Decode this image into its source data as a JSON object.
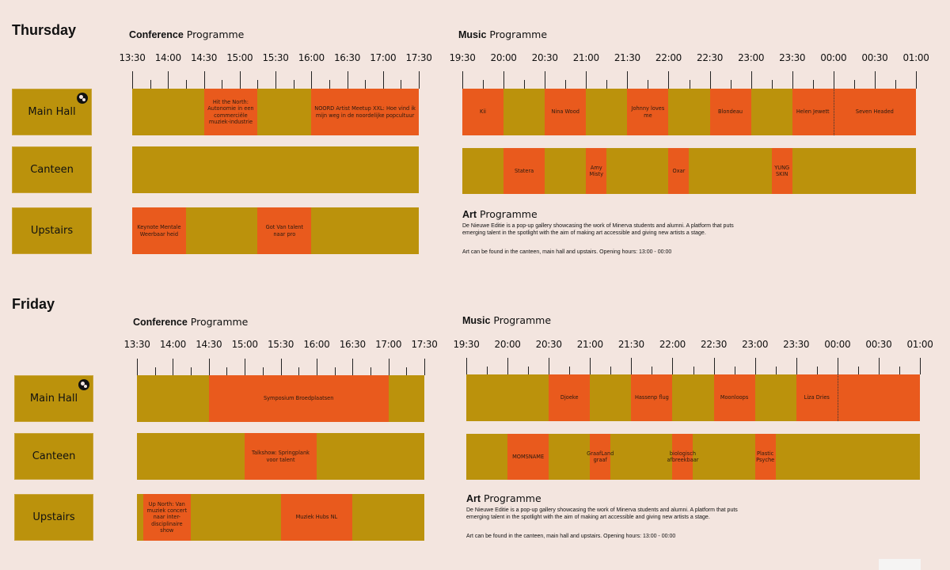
{
  "days": [
    {
      "name": "Thursday",
      "conference": {
        "title_bold": "Conference",
        "title_rest": "Programme",
        "time_labels": [
          "13:30",
          "14:00",
          "14:30",
          "15:00",
          "15:30",
          "16:00",
          "16:30",
          "17:00",
          "17:30"
        ],
        "venues": [
          {
            "name": "Main Hall",
            "has_icon": true,
            "events": [
              {
                "label": "Hit the North: Autonomie in een commerciële muziek-industrie",
                "start": "14:30",
                "end": "15:15"
              },
              {
                "label": "NOORD Artist Meetup XXL: Hoe vind ik mijn weg in de noordelijke popcultuur",
                "start": "16:00",
                "end": "17:30"
              }
            ]
          },
          {
            "name": "Canteen",
            "has_icon": false,
            "events": []
          },
          {
            "name": "Upstairs",
            "has_icon": false,
            "events": [
              {
                "label": "Keynote Mentale Weerbaar heid",
                "start": "13:30",
                "end": "14:15"
              },
              {
                "label": "Got Van talent naar pro",
                "start": "15:15",
                "end": "16:00"
              }
            ]
          }
        ]
      },
      "music": {
        "title_bold": "Music",
        "title_rest": "Programme",
        "time_labels": [
          "19:30",
          "20:00",
          "20:30",
          "21:00",
          "21:30",
          "22:00",
          "22:30",
          "23:00",
          "23:30",
          "00:00",
          "00:30",
          "01:00"
        ],
        "venues": [
          {
            "name": "Main Hall",
            "events": [
              {
                "label": "Kii",
                "start": "19:30",
                "end": "20:00"
              },
              {
                "label": "Nina Wood",
                "start": "20:30",
                "end": "21:00"
              },
              {
                "label": "Johnny loves me",
                "start": "21:30",
                "end": "22:00"
              },
              {
                "label": "Blondeau",
                "start": "22:30",
                "end": "23:00"
              },
              {
                "label": "Helen Jewett",
                "start": "23:30",
                "end": "00:00"
              },
              {
                "label": "Seven Headed",
                "start": "00:00",
                "end": "01:00"
              }
            ]
          },
          {
            "name": "Canteen",
            "events": [
              {
                "label": "Statera",
                "start": "20:00",
                "end": "20:30"
              },
              {
                "label": "Amy Misty",
                "start": "21:00",
                "end": "21:15"
              },
              {
                "label": "Oxar",
                "start": "22:00",
                "end": "22:15"
              },
              {
                "label": "YUNG SKIN",
                "start": "23:15",
                "end": "23:30"
              }
            ]
          }
        ]
      },
      "art": {
        "title_bold": "Art",
        "title_rest": "Programme",
        "description": "De Nieuwe Editie is a pop-up gallery showcasing the work of Minerva students and alumni. A platform that puts emerging talent in the spotlight with the aim of making art accessible and giving new artists a stage.",
        "location": "Art can be found in the canteen, main hall and upstairs. Opening hours: 13:00 - 00:00"
      }
    },
    {
      "name": "Friday",
      "conference": {
        "title_bold": "Conference",
        "title_rest": "Programme",
        "time_labels": [
          "13:30",
          "14:00",
          "14:30",
          "15:00",
          "15:30",
          "16:00",
          "16:30",
          "17:00",
          "17:30"
        ],
        "venues": [
          {
            "name": "Main Hall",
            "has_icon": true,
            "events": [
              {
                "label": "Symposium Broedplaatsen",
                "start": "14:30",
                "end": "17:00"
              }
            ]
          },
          {
            "name": "Canteen",
            "has_icon": false,
            "events": [
              {
                "label": "Talkshow: Springplank voor talent",
                "start": "15:00",
                "end": "16:00"
              }
            ]
          },
          {
            "name": "Upstairs",
            "has_icon": false,
            "events": [
              {
                "label": "Up North: Van muziek concert naar inter-disciplinaire show",
                "start": "13:35",
                "end": "14:15"
              },
              {
                "label": "Muziek Hubs NL",
                "start": "15:30",
                "end": "16:30"
              }
            ]
          }
        ]
      },
      "music": {
        "title_bold": "Music",
        "title_rest": "Programme",
        "time_labels": [
          "19:30",
          "20:00",
          "20:30",
          "21:00",
          "21:30",
          "22:00",
          "22:30",
          "23:00",
          "23:30",
          "00:00",
          "00:30",
          "01:00"
        ],
        "venues": [
          {
            "name": "Main Hall",
            "events": [
              {
                "label": "Djoeke",
                "start": "20:30",
                "end": "21:00"
              },
              {
                "label": "Hassenp flug",
                "start": "21:30",
                "end": "22:00"
              },
              {
                "label": "Moonloops",
                "start": "22:30",
                "end": "23:00"
              },
              {
                "label": "Liza Dries",
                "start": "23:30",
                "end": "00:00"
              },
              {
                "label": "",
                "start": "00:00",
                "end": "01:00"
              }
            ]
          },
          {
            "name": "Canteen",
            "events": [
              {
                "label": "MOMSNAME",
                "start": "20:00",
                "end": "20:30"
              },
              {
                "label": "GraafLand graaf",
                "start": "21:00",
                "end": "21:15"
              },
              {
                "label": "biologisch afbreekbaar",
                "start": "22:00",
                "end": "22:15"
              },
              {
                "label": "Plastic Psyche",
                "start": "23:00",
                "end": "23:15"
              }
            ]
          }
        ]
      },
      "art": {
        "title_bold": "Art",
        "title_rest": "Programme",
        "description": "De Nieuwe Editie is a pop-up gallery showcasing the work of Minerva students and alumni. A platform that puts emerging talent in the spotlight with the aim of making art accessible and giving new artists a stage.",
        "location": "Art can be found in the canteen, main hall and upstairs. Opening hours: 13:00 - 00:00"
      }
    }
  ],
  "colors": {
    "background": "#f3e5df",
    "slot_empty": "#bb920c",
    "slot_event": "#e95a1d"
  }
}
